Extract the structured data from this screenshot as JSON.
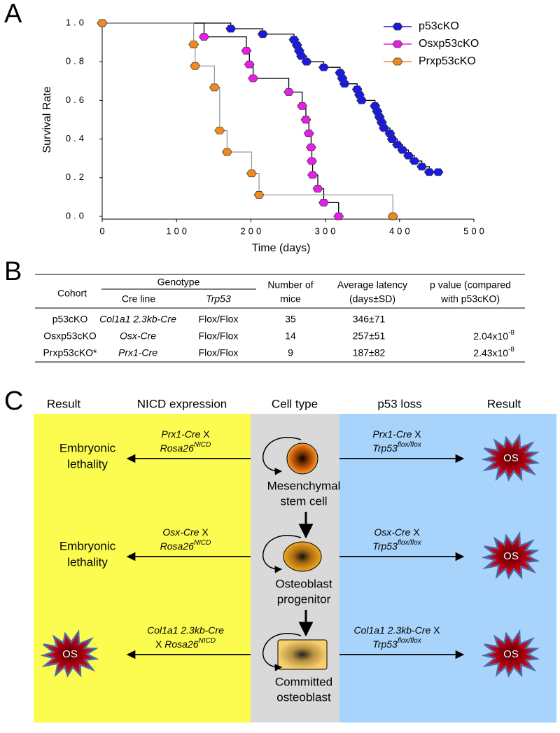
{
  "panel_labels": [
    "A",
    "B",
    "C"
  ],
  "chart_data": {
    "type": "step",
    "xlabel": "Time (days)",
    "ylabel": "Survival Rate",
    "xlim": [
      0,
      500
    ],
    "ylim": [
      0,
      1
    ],
    "xticks": [
      0,
      100,
      200,
      300,
      400,
      500
    ],
    "yticks": [
      {
        "value": 0,
        "label": "0.0"
      },
      {
        "value": 0.2,
        "label": "0.2"
      },
      {
        "value": 0.4,
        "label": "0.4"
      },
      {
        "value": 0.6,
        "label": "0.6"
      },
      {
        "value": 0.8,
        "label": "0.8"
      },
      {
        "value": 1,
        "label": "1.0"
      }
    ],
    "legend": "upper right",
    "series": [
      {
        "name": "p53cKO",
        "color": "#1a1ae0",
        "line_color": "#000000",
        "x": [
          0,
          173,
          216,
          258,
          262,
          265,
          268,
          275,
          298,
          320,
          323,
          326,
          343,
          346,
          349,
          367,
          370,
          373,
          376,
          379,
          387,
          390,
          397,
          404,
          412,
          420,
          430,
          440,
          452
        ],
        "values": [
          1,
          0.971,
          0.943,
          0.914,
          0.886,
          0.857,
          0.829,
          0.8,
          0.771,
          0.743,
          0.714,
          0.686,
          0.657,
          0.629,
          0.6,
          0.571,
          0.543,
          0.514,
          0.486,
          0.457,
          0.429,
          0.4,
          0.371,
          0.343,
          0.314,
          0.286,
          0.257,
          0.229,
          0.229
        ]
      },
      {
        "name": "Osxp53cKO",
        "color": "#e61ee6",
        "line_color": "#000000",
        "x": [
          0,
          137,
          194,
          198,
          203,
          251,
          269,
          274,
          278,
          281,
          282,
          283,
          290,
          298,
          318
        ],
        "values": [
          1,
          0.929,
          0.857,
          0.786,
          0.714,
          0.643,
          0.571,
          0.5,
          0.429,
          0.357,
          0.286,
          0.214,
          0.143,
          0.071,
          0
        ]
      },
      {
        "name": "Prxp53cKO",
        "color": "#f08a1e",
        "line_color": "#9a9a9a",
        "x": [
          0,
          123,
          125,
          151,
          158,
          168,
          201,
          211,
          391
        ],
        "values": [
          1,
          0.889,
          0.778,
          0.667,
          0.444,
          0.333,
          0.222,
          0.111,
          0
        ]
      }
    ]
  },
  "table": {
    "header": {
      "cohort": "Cohort",
      "genotype": "Genotype",
      "cre_line": "Cre line",
      "trp53": "Trp53",
      "number": [
        "Number of",
        "mice"
      ],
      "latency": [
        "Average latency",
        "(days±SD)"
      ],
      "p_value": [
        "p value (compared",
        "with p53cKO)"
      ]
    },
    "rows": [
      {
        "cohort": "p53cKO",
        "cre_line": "Col1a1 2.3kb-Cre",
        "trp53": "Flox/Flox",
        "number": 35,
        "latency": "346±71"
      },
      {
        "cohort": "Osxp53cKO",
        "cre_line": "Osx-Cre",
        "trp53": "Flox/Flox",
        "number": 14,
        "latency": "257±51",
        "p_value": {
          "mantissa": "2.04x10",
          "exponent": "-8"
        }
      },
      {
        "cohort": "Prxp53cKO*",
        "cre_line": "Prx1-Cre",
        "trp53": "Flox/Flox",
        "number": 9,
        "latency": "187±82",
        "p_value": {
          "mantissa": "2.43x10",
          "exponent": "-8"
        }
      }
    ]
  },
  "diagram": {
    "headers": [
      "Result",
      "NICD expression",
      "Cell type",
      "p53 loss",
      "Result"
    ],
    "rows": [
      {
        "cell": [
          "Mesenchymal",
          "stem cell"
        ],
        "nicd_cross": {
          "cre": "Prx1-Cre",
          "x": "X",
          "allele": "Rosa26",
          "allele_sup": "NICD"
        },
        "nicd_result": [
          "Embryonic",
          "lethality"
        ],
        "p53_cross": {
          "cre": "Prx1-Cre",
          "x": "X",
          "allele": "Trp53",
          "allele_sup": "flox/flox"
        },
        "p53_result": "OS"
      },
      {
        "cell": [
          "Osteoblast",
          "progenitor"
        ],
        "nicd_cross": {
          "cre": "Osx-Cre",
          "x": "X",
          "allele": "Rosa26",
          "allele_sup": "NICD"
        },
        "nicd_result": [
          "Embryonic",
          "lethality"
        ],
        "p53_cross": {
          "cre": "Osx-Cre",
          "x": "X",
          "allele": "Trp53",
          "allele_sup": "flox/flox"
        },
        "p53_result": "OS"
      },
      {
        "cell": [
          "Committed",
          "osteoblast"
        ],
        "nicd_cross": {
          "cre": "Col1a1 2.3kb-Cre",
          "x": "X",
          "allele": "Rosa26",
          "allele_sup": "NICD"
        },
        "nicd_result": "OS",
        "p53_cross": {
          "cre": "Col1a1 2.3kb-Cre",
          "x": "X",
          "allele": "Trp53",
          "allele_sup": "flox/flox"
        },
        "p53_result": "OS"
      }
    ]
  }
}
